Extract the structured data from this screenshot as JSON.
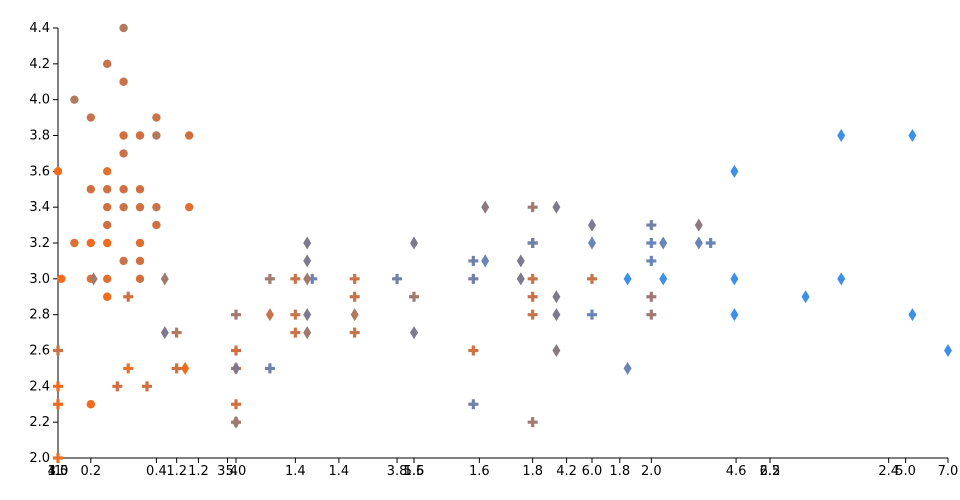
{
  "chart_data": {
    "type": "scatter",
    "title": "",
    "xlabel": "",
    "ylabel": "",
    "grid": false,
    "legend": "none",
    "shared_y_axis": {
      "ylim": [
        2.0,
        4.4
      ],
      "ticks": [
        "2.0",
        "2.2",
        "2.4",
        "2.6",
        "2.8",
        "3.0",
        "3.2",
        "3.4",
        "3.6",
        "3.8",
        "4.0",
        "4.2",
        "4.4"
      ]
    },
    "x_axes": [
      {
        "xlim": [
          0.1,
          0.6
        ],
        "ticks": [
          "0.2",
          "0.4"
        ],
        "labels": [
          "0.2",
          "0.4"
        ]
      },
      {
        "xlim": [
          1.0,
          1.9
        ],
        "ticks": [
          "1.0",
          "1.2",
          "1.4",
          "1.6",
          "1.8"
        ],
        "labels": [
          "1",
          "1.2",
          "1.4",
          "1.6",
          "1.8"
        ]
      },
      {
        "xlim": [
          1.0,
          2.5
        ],
        "ticks": [
          "1.0",
          "1.2",
          "1.4",
          "1.6",
          "1.8",
          "2.0",
          "2.2",
          "2.4"
        ],
        "labels": [
          "1.0",
          "1.2",
          "1.4",
          "1.6",
          "1.8",
          "2.0",
          "2.2",
          "2.4"
        ]
      },
      {
        "xlim": [
          3.0,
          5.1
        ],
        "ticks": [
          "3.0",
          "3.4",
          "3.8",
          "4.2",
          "4.6",
          "5.0"
        ],
        "labels": [
          "3.0",
          "3.4",
          "3.8",
          "4.2",
          "4.6",
          "5.0"
        ]
      },
      {
        "xlim": [
          4.5,
          7.0
        ],
        "ticks": [
          "4.5",
          "5.0",
          "5.5",
          "6.0",
          "6.5",
          "7.0"
        ],
        "labels": [
          "4.5",
          "5.0",
          "5.5",
          "6.0",
          "6.5",
          "7.0"
        ]
      }
    ],
    "groups": [
      {
        "marker": "circle",
        "x_axis": 0,
        "points": [
          {
            "x": 0.1,
            "y": 3.6,
            "color": "#f26a1b"
          },
          {
            "x": 0.11,
            "y": 3.0,
            "color": "#f26a1b"
          },
          {
            "x": 0.15,
            "y": 4.0,
            "color": "#b07a5e"
          },
          {
            "x": 0.15,
            "y": 3.2,
            "color": "#e07030"
          },
          {
            "x": 0.2,
            "y": 3.9,
            "color": "#c8734a"
          },
          {
            "x": 0.2,
            "y": 3.5,
            "color": "#d07040"
          },
          {
            "x": 0.2,
            "y": 3.2,
            "color": "#f26a1b"
          },
          {
            "x": 0.2,
            "y": 3.0,
            "color": "#e87028"
          },
          {
            "x": 0.2,
            "y": 2.3,
            "color": "#f26a1b"
          },
          {
            "x": 0.25,
            "y": 4.2,
            "color": "#c8734a"
          },
          {
            "x": 0.25,
            "y": 3.6,
            "color": "#e07030"
          },
          {
            "x": 0.25,
            "y": 3.5,
            "color": "#d07040"
          },
          {
            "x": 0.25,
            "y": 3.4,
            "color": "#d07040"
          },
          {
            "x": 0.25,
            "y": 3.3,
            "color": "#d07040"
          },
          {
            "x": 0.25,
            "y": 3.2,
            "color": "#f26a1b"
          },
          {
            "x": 0.25,
            "y": 3.0,
            "color": "#e07030"
          },
          {
            "x": 0.25,
            "y": 2.9,
            "color": "#f26a1b"
          },
          {
            "x": 0.3,
            "y": 4.4,
            "color": "#b07a5e"
          },
          {
            "x": 0.3,
            "y": 4.1,
            "color": "#c8734a"
          },
          {
            "x": 0.3,
            "y": 3.8,
            "color": "#d07040"
          },
          {
            "x": 0.3,
            "y": 3.7,
            "color": "#c8734a"
          },
          {
            "x": 0.3,
            "y": 3.5,
            "color": "#d07040"
          },
          {
            "x": 0.3,
            "y": 3.4,
            "color": "#c8734a"
          },
          {
            "x": 0.3,
            "y": 3.1,
            "color": "#c8734a"
          },
          {
            "x": 0.35,
            "y": 3.8,
            "color": "#d07040"
          },
          {
            "x": 0.35,
            "y": 3.5,
            "color": "#d07040"
          },
          {
            "x": 0.35,
            "y": 3.4,
            "color": "#d07040"
          },
          {
            "x": 0.35,
            "y": 3.2,
            "color": "#e07030"
          },
          {
            "x": 0.35,
            "y": 3.1,
            "color": "#d07040"
          },
          {
            "x": 0.35,
            "y": 3.0,
            "color": "#d07040"
          },
          {
            "x": 0.4,
            "y": 3.9,
            "color": "#c8734a"
          },
          {
            "x": 0.4,
            "y": 3.8,
            "color": "#b07a5e"
          },
          {
            "x": 0.4,
            "y": 3.4,
            "color": "#c8734a"
          },
          {
            "x": 0.4,
            "y": 3.3,
            "color": "#d07040"
          },
          {
            "x": 0.5,
            "y": 3.8,
            "color": "#d07040"
          },
          {
            "x": 0.5,
            "y": 3.4,
            "color": "#e07030"
          }
        ]
      },
      {
        "marker": "plus",
        "x_axis": 1,
        "points": [
          {
            "x": 1.0,
            "y": 2.0,
            "color": "#e87028"
          },
          {
            "x": 1.0,
            "y": 2.6,
            "color": "#c8734a"
          },
          {
            "x": 1.0,
            "y": 2.3,
            "color": "#f26a1b"
          },
          {
            "x": 1.0,
            "y": 2.4,
            "color": "#f26a1b"
          },
          {
            "x": 1.1,
            "y": 2.9,
            "color": "#d07040"
          },
          {
            "x": 1.1,
            "y": 2.5,
            "color": "#e87028"
          }
        ]
      },
      {
        "marker": "plus",
        "x_axis": 2,
        "points": [
          {
            "x": 1.1,
            "y": 2.4,
            "color": "#d07040"
          },
          {
            "x": 1.15,
            "y": 2.4,
            "color": "#d07040"
          },
          {
            "x": 1.2,
            "y": 2.7,
            "color": "#b07a5e"
          },
          {
            "x": 1.2,
            "y": 2.5,
            "color": "#d07040"
          },
          {
            "x": 1.3,
            "y": 2.8,
            "color": "#a07a70"
          },
          {
            "x": 1.3,
            "y": 2.6,
            "color": "#d07040"
          },
          {
            "x": 1.3,
            "y": 2.5,
            "color": "#d07040"
          },
          {
            "x": 1.3,
            "y": 2.3,
            "color": "#d07040"
          },
          {
            "x": 1.3,
            "y": 2.2,
            "color": "#a07a70"
          },
          {
            "x": 1.4,
            "y": 3.0,
            "color": "#c8734a"
          },
          {
            "x": 1.4,
            "y": 2.8,
            "color": "#c8734a"
          },
          {
            "x": 1.4,
            "y": 2.7,
            "color": "#c8734a"
          },
          {
            "x": 1.5,
            "y": 3.0,
            "color": "#c8734a"
          },
          {
            "x": 1.5,
            "y": 2.9,
            "color": "#c8734a"
          },
          {
            "x": 1.5,
            "y": 2.7,
            "color": "#c8734a"
          },
          {
            "x": 1.6,
            "y": 2.9,
            "color": "#a07a70"
          },
          {
            "x": 1.7,
            "y": 2.6,
            "color": "#d07040"
          },
          {
            "x": 1.8,
            "y": 3.4,
            "color": "#a07a70"
          },
          {
            "x": 1.8,
            "y": 3.2,
            "color": "#a07a70"
          },
          {
            "x": 1.8,
            "y": 3.0,
            "color": "#c8734a"
          },
          {
            "x": 1.8,
            "y": 2.9,
            "color": "#c8734a"
          },
          {
            "x": 1.8,
            "y": 2.8,
            "color": "#c8734a"
          },
          {
            "x": 1.8,
            "y": 2.2,
            "color": "#a07a70"
          },
          {
            "x": 1.7,
            "y": 3.1,
            "color": "#7080a8"
          },
          {
            "x": 1.7,
            "y": 3.0,
            "color": "#7080a8"
          },
          {
            "x": 1.7,
            "y": 2.3,
            "color": "#7080a8"
          },
          {
            "x": 1.8,
            "y": 3.2,
            "color": "#7080a8"
          },
          {
            "x": 1.9,
            "y": 3.0,
            "color": "#c8734a"
          },
          {
            "x": 2.0,
            "y": 3.3,
            "color": "#7080a8"
          },
          {
            "x": 2.0,
            "y": 3.1,
            "color": "#6a84b8"
          },
          {
            "x": 2.0,
            "y": 2.9,
            "color": "#a07a70"
          },
          {
            "x": 2.0,
            "y": 2.8,
            "color": "#a07a70"
          },
          {
            "x": 2.0,
            "y": 3.2,
            "color": "#6a84b8"
          },
          {
            "x": 1.9,
            "y": 2.8,
            "color": "#6a84b8"
          },
          {
            "x": 2.1,
            "y": 3.2,
            "color": "#6a84b8"
          }
        ]
      },
      {
        "marker": "diamond",
        "x_axis": 3,
        "points": [
          {
            "x": 3.3,
            "y": 2.5,
            "color": "#f26a1b"
          },
          {
            "x": 3.5,
            "y": 2.8,
            "color": "#c8734a"
          },
          {
            "x": 3.7,
            "y": 2.8,
            "color": "#b07a5e"
          }
        ]
      },
      {
        "marker": "plus",
        "x_axis": 3,
        "points": [
          {
            "x": 3.5,
            "y": 3.0,
            "color": "#a07a70"
          },
          {
            "x": 3.5,
            "y": 2.5,
            "color": "#7080a8"
          },
          {
            "x": 3.6,
            "y": 3.0,
            "color": "#6a84b8"
          },
          {
            "x": 3.8,
            "y": 3.0,
            "color": "#7080a8"
          }
        ]
      },
      {
        "marker": "diamond",
        "x_axis": 4,
        "points": [
          {
            "x": 4.6,
            "y": 3.0,
            "color": "#a07a70"
          },
          {
            "x": 4.8,
            "y": 3.0,
            "color": "#a07a70"
          },
          {
            "x": 4.8,
            "y": 2.7,
            "color": "#7c7a8c"
          },
          {
            "x": 5.0,
            "y": 2.5,
            "color": "#7c7a8c"
          },
          {
            "x": 5.0,
            "y": 2.2,
            "color": "#a07a70"
          },
          {
            "x": 5.2,
            "y": 3.2,
            "color": "#7c7a8c"
          },
          {
            "x": 5.2,
            "y": 3.1,
            "color": "#7c7a8c"
          },
          {
            "x": 5.2,
            "y": 3.0,
            "color": "#a07a70"
          },
          {
            "x": 5.2,
            "y": 2.8,
            "color": "#7c7a8c"
          },
          {
            "x": 5.2,
            "y": 2.7,
            "color": "#a07a70"
          },
          {
            "x": 5.5,
            "y": 3.2,
            "color": "#7c7a8c"
          },
          {
            "x": 5.5,
            "y": 2.7,
            "color": "#7c7a8c"
          },
          {
            "x": 5.7,
            "y": 3.4,
            "color": "#8a7a80"
          },
          {
            "x": 5.7,
            "y": 3.1,
            "color": "#6a84b8"
          },
          {
            "x": 5.8,
            "y": 3.1,
            "color": "#7c7a8c"
          },
          {
            "x": 5.8,
            "y": 3.0,
            "color": "#7c7a8c"
          },
          {
            "x": 5.9,
            "y": 3.4,
            "color": "#7c7a8c"
          },
          {
            "x": 5.9,
            "y": 2.9,
            "color": "#7c7a8c"
          },
          {
            "x": 5.9,
            "y": 2.8,
            "color": "#7c7a8c"
          },
          {
            "x": 5.9,
            "y": 2.6,
            "color": "#8a7a80"
          },
          {
            "x": 6.0,
            "y": 3.3,
            "color": "#7c7a8c"
          },
          {
            "x": 6.0,
            "y": 3.2,
            "color": "#6a84b8"
          },
          {
            "x": 6.1,
            "y": 3.0,
            "color": "#3d8fe8"
          },
          {
            "x": 6.1,
            "y": 2.5,
            "color": "#6a84b8"
          },
          {
            "x": 6.2,
            "y": 3.2,
            "color": "#6a84b8"
          },
          {
            "x": 6.2,
            "y": 3.0,
            "color": "#3d8fe8"
          },
          {
            "x": 6.3,
            "y": 3.2,
            "color": "#6a84b8"
          },
          {
            "x": 6.3,
            "y": 3.3,
            "color": "#8a7a80"
          },
          {
            "x": 6.4,
            "y": 3.6,
            "color": "#3d8fe8"
          },
          {
            "x": 6.4,
            "y": 3.0,
            "color": "#3d8fe8"
          },
          {
            "x": 6.4,
            "y": 2.8,
            "color": "#3d8fe8"
          },
          {
            "x": 6.6,
            "y": 2.9,
            "color": "#3d8fe8"
          },
          {
            "x": 6.7,
            "y": 3.8,
            "color": "#3d8fe8"
          },
          {
            "x": 6.7,
            "y": 3.0,
            "color": "#3d8fe8"
          },
          {
            "x": 6.9,
            "y": 3.8,
            "color": "#3d8fe8"
          },
          {
            "x": 6.9,
            "y": 2.8,
            "color": "#3d8fe8"
          },
          {
            "x": 7.0,
            "y": 2.6,
            "color": "#3d8fe8"
          }
        ]
      }
    ]
  }
}
